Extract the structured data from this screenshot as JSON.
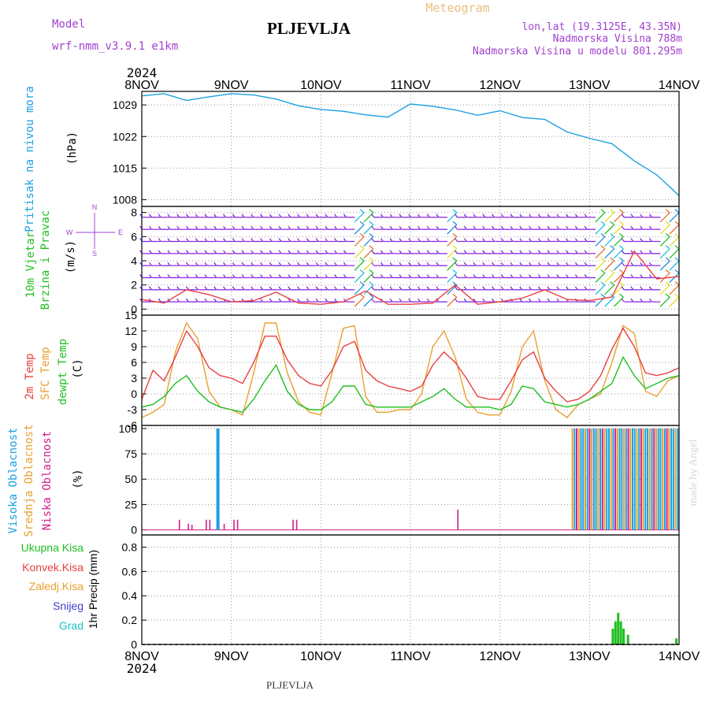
{
  "header": {
    "model_label": "Model",
    "model_name": "wrf-nmm_v3.9.1 e1km",
    "station": "PLJEVLJA",
    "meteogram_label": "Meteogram",
    "lonlat": "lon,lat (19.3125E, 43.35N)",
    "elevation": "Nadmorska Visina 788m",
    "model_elevation": "Nadmorska Visina u modelu 801.295m"
  },
  "footer": {
    "station": "PLJEVLJA",
    "credit": "made by Angel"
  },
  "time_axis": {
    "year": "2024",
    "days": [
      "8NOV",
      "9NOV",
      "10NOV",
      "11NOV",
      "12NOV",
      "13NOV",
      "14NOV"
    ]
  },
  "colors": {
    "pressure": "#1ba0e0",
    "temp2m": "#e84040",
    "sfc_temp": "#e8a030",
    "dewpt": "#20c020",
    "cloud_high": "#1ba0e0",
    "cloud_mid": "#e8a030",
    "cloud_low": "#d0208a",
    "precip_total": "#20c020",
    "wind_speed": "#e84040",
    "model_text": "#a040d0",
    "meteogram_text": "#e8c080"
  },
  "chart_data": [
    {
      "type": "line",
      "name": "pressure",
      "ylabel_lines": [
        "Pritisak na nivou mora"
      ],
      "unit": "(hPa)",
      "ylim": [
        1006.5,
        1032
      ],
      "yticks": [
        1008,
        1015,
        1022,
        1029
      ],
      "x": [
        0,
        0.25,
        0.5,
        0.75,
        1,
        1.25,
        1.5,
        1.75,
        2,
        2.25,
        2.5,
        2.75,
        3,
        3.25,
        3.5,
        3.75,
        4,
        4.25,
        4.5,
        4.75,
        5,
        5.25,
        5.5,
        5.75,
        6
      ],
      "series": [
        {
          "values": [
            1031.0,
            1031.5,
            1030.0,
            1030.8,
            1031.5,
            1031.2,
            1030.3,
            1028.8,
            1028.0,
            1027.6,
            1026.8,
            1026.3,
            1029.2,
            1028.7,
            1027.9,
            1026.7,
            1027.7,
            1026.2,
            1025.8,
            1023.0,
            1021.6,
            1020.4,
            1016.6,
            1013.5,
            1008.9
          ]
        }
      ]
    },
    {
      "type": "line",
      "name": "wind",
      "ylabel_lines": [
        "10m Vjetar",
        "Brzina i Pravac"
      ],
      "unit": "(m/s)",
      "direction_legend": [
        "N",
        "W",
        "E",
        "S"
      ],
      "ylim": [
        -0.5,
        8.5
      ],
      "yticks": [
        0,
        2,
        4,
        6,
        8
      ],
      "x": [
        0,
        0.25,
        0.5,
        0.75,
        1,
        1.25,
        1.5,
        1.75,
        2,
        2.25,
        2.5,
        2.75,
        3,
        3.25,
        3.5,
        3.75,
        4,
        4.25,
        4.5,
        4.75,
        5,
        5.25,
        5.5,
        5.75,
        6
      ],
      "series": [
        {
          "name": "speed",
          "values": [
            0.8,
            0.5,
            1.6,
            1.2,
            0.6,
            0.7,
            1.4,
            0.5,
            0.4,
            0.6,
            1.5,
            0.4,
            0.4,
            0.5,
            2.0,
            0.4,
            0.6,
            0.9,
            1.6,
            0.8,
            0.7,
            1.0,
            4.8,
            2.5,
            2.7
          ]
        }
      ]
    },
    {
      "type": "line",
      "name": "temperature",
      "ylabel_lines": [
        "2m Temp",
        "SFC Temp",
        "dewpt Temp"
      ],
      "unit": "(C)",
      "ylim": [
        -6,
        15
      ],
      "yticks": [
        -6,
        -3,
        0,
        3,
        6,
        9,
        12,
        15
      ],
      "x": [
        0,
        0.125,
        0.25,
        0.375,
        0.5,
        0.625,
        0.75,
        0.875,
        1,
        1.125,
        1.25,
        1.375,
        1.5,
        1.625,
        1.75,
        1.875,
        2,
        2.125,
        2.25,
        2.375,
        2.5,
        2.625,
        2.75,
        2.875,
        3,
        3.125,
        3.25,
        3.375,
        3.5,
        3.625,
        3.75,
        3.875,
        4,
        4.125,
        4.25,
        4.375,
        4.5,
        4.625,
        4.75,
        4.875,
        5,
        5.125,
        5.25,
        5.375,
        5.5,
        5.625,
        5.75,
        5.875,
        6
      ],
      "series": [
        {
          "name": "2m Temp",
          "values": [
            -1.0,
            4.5,
            2.5,
            7.0,
            12.0,
            9.0,
            5.0,
            3.5,
            3.0,
            2.0,
            6.0,
            11.0,
            11.0,
            6.5,
            3.5,
            2.0,
            1.5,
            4.5,
            9.0,
            10.0,
            4.5,
            2.5,
            1.5,
            1.0,
            0.5,
            1.5,
            5.5,
            8.0,
            6.0,
            3.0,
            -0.5,
            -1.0,
            -1.0,
            2.5,
            6.5,
            8.0,
            3.0,
            0.5,
            -1.5,
            -1.0,
            0.5,
            3.5,
            8.5,
            12.5,
            9.0,
            4.0,
            3.5,
            4.0,
            5.0
          ]
        },
        {
          "name": "SFC Temp",
          "values": [
            -4.5,
            -3.5,
            -2.0,
            8.0,
            13.5,
            10.5,
            0.5,
            -2.5,
            -3.0,
            -4.0,
            4.0,
            13.5,
            13.5,
            4.0,
            -1.5,
            -3.5,
            -4.0,
            4.0,
            12.5,
            13.0,
            -0.5,
            -3.5,
            -3.5,
            -3.0,
            -3.0,
            0.0,
            9.0,
            12.0,
            7.0,
            -1.0,
            -3.5,
            -4.0,
            -4.0,
            0.5,
            9.0,
            12.0,
            2.5,
            -3.0,
            -4.5,
            -2.0,
            -1.0,
            0.0,
            6.0,
            13.0,
            11.5,
            0.5,
            -0.5,
            2.5,
            3.5
          ]
        },
        {
          "name": "dewpt Temp",
          "values": [
            -2.5,
            -2.0,
            -0.5,
            2.0,
            3.5,
            0.5,
            -1.5,
            -2.5,
            -3.0,
            -3.5,
            -1.0,
            2.5,
            5.5,
            0.5,
            -2.0,
            -3.0,
            -3.0,
            -1.5,
            1.5,
            1.5,
            -2.0,
            -2.5,
            -2.5,
            -2.5,
            -2.5,
            -1.5,
            -0.5,
            1.0,
            -1.0,
            -2.5,
            -2.5,
            -2.5,
            -3.0,
            -2.0,
            1.5,
            1.0,
            -1.5,
            -2.0,
            -2.5,
            -2.0,
            -1.0,
            0.5,
            2.0,
            7.0,
            3.5,
            1.0,
            2.0,
            3.0,
            3.5
          ]
        }
      ]
    },
    {
      "type": "bar",
      "name": "cloud_cover",
      "ylabel_lines": [
        "Visoka Oblacnost",
        "Srednja Oblacnost",
        "Niska Oblacnost"
      ],
      "unit": "(%)",
      "ylim": [
        -5,
        103
      ],
      "yticks": [
        0,
        25,
        50,
        75,
        100
      ],
      "overcast_start_day": 4.8,
      "overcast_end_day": 6.0,
      "overcast_value": 100,
      "series": [
        {
          "name": "Visoka Oblacnost",
          "x": [
            0.85
          ],
          "values": [
            100
          ]
        },
        {
          "name": "Niska Oblacnost",
          "x": [
            0.42,
            0.52,
            0.56,
            0.72,
            0.76,
            0.86,
            0.92,
            1.03,
            1.07,
            1.69,
            1.73,
            3.53
          ],
          "values": [
            10,
            6,
            5,
            10,
            10,
            10,
            6,
            10,
            10,
            10,
            10,
            20
          ]
        }
      ]
    },
    {
      "type": "bar",
      "name": "precipitation",
      "ylabel_lines": [
        "1hr Precip (mm)"
      ],
      "legend": [
        "Ukupna Kisa",
        "Konvek.Kisa",
        "Zaledj.Kisa",
        "Snijeg",
        "Grad"
      ],
      "legend_colors": [
        "#20c020",
        "#e84040",
        "#e8a030",
        "#4040d0",
        "#20c0c0"
      ],
      "ylim": [
        0,
        0.9
      ],
      "yticks": [
        0,
        0.2,
        0.4,
        0.6,
        0.8
      ],
      "series": [
        {
          "name": "Ukupna Kisa",
          "x": [
            5.26,
            5.29,
            5.32,
            5.35,
            5.38,
            5.43,
            5.97
          ],
          "values": [
            0.13,
            0.19,
            0.26,
            0.19,
            0.13,
            0.08,
            0.05
          ]
        }
      ]
    }
  ]
}
